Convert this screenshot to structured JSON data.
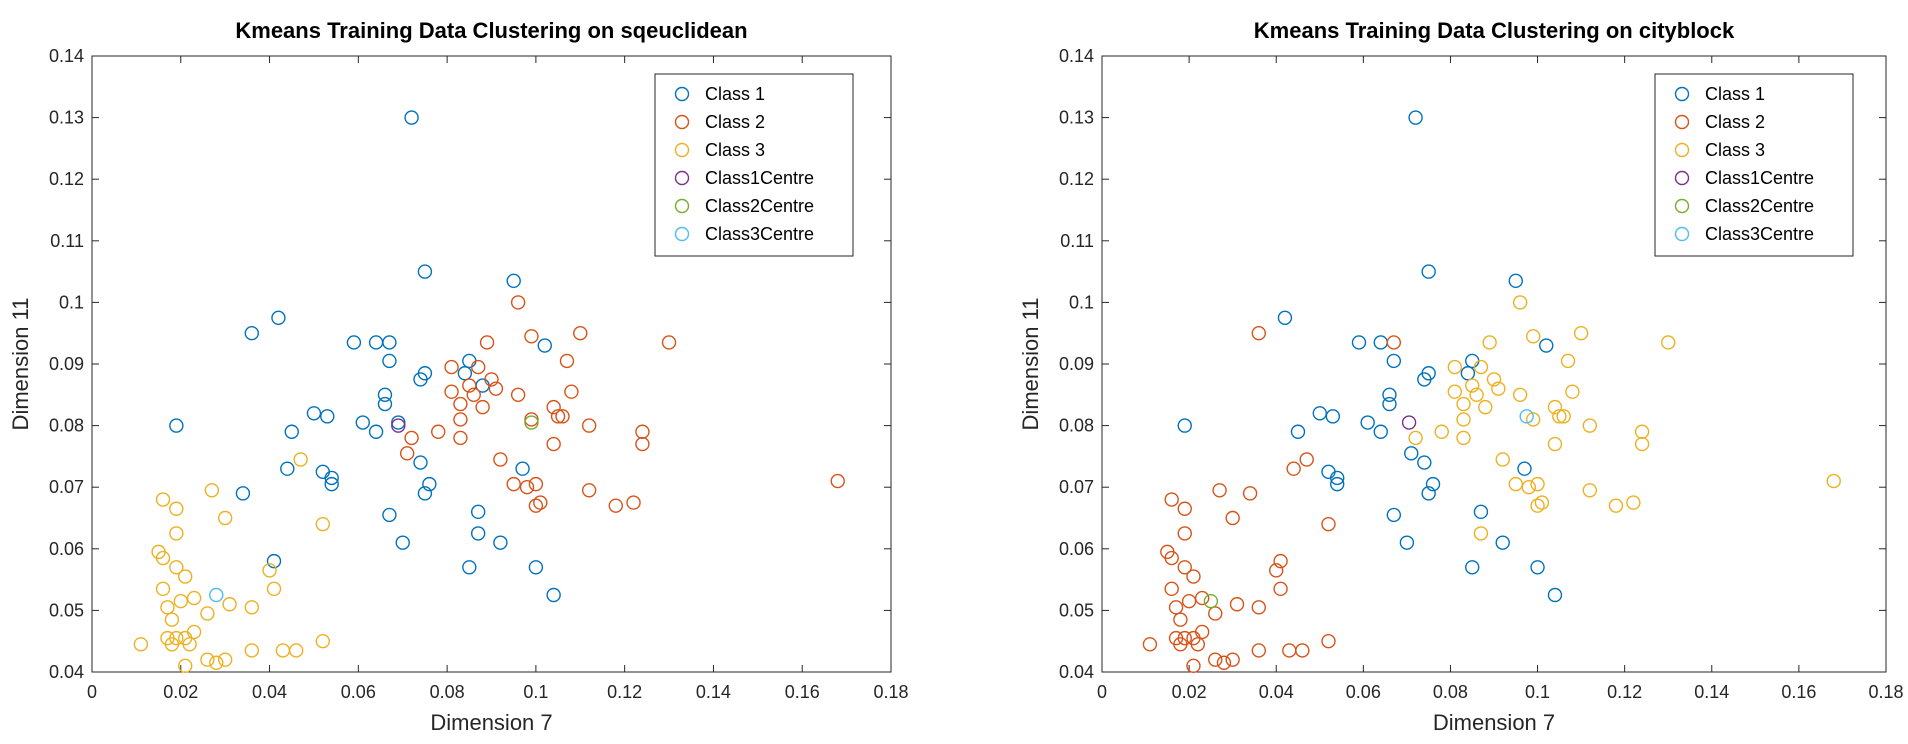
{
  "chart_data": [
    {
      "type": "scatter",
      "title": "Kmeans Training Data Clustering on sqeuclidean",
      "xlabel": "Dimension 7",
      "ylabel": "Dimension 11",
      "xlim": [
        0,
        0.18
      ],
      "ylim": [
        0.04,
        0.14
      ],
      "xticks": [
        "0",
        "0.02",
        "0.04",
        "0.06",
        "0.08",
        "0.1",
        "0.12",
        "0.14",
        "0.16",
        "0.18"
      ],
      "yticks": [
        "0.04",
        "0.05",
        "0.06",
        "0.07",
        "0.08",
        "0.09",
        "0.1",
        "0.11",
        "0.12",
        "0.13",
        "0.14"
      ],
      "grid": false,
      "legend_position": "top-right",
      "series": [
        {
          "name": "Class 1",
          "color": "#0072BD",
          "points": [
            [
              0.072,
              0.13
            ],
            [
              0.075,
              0.105
            ],
            [
              0.095,
              0.1035
            ],
            [
              0.036,
              0.095
            ],
            [
              0.042,
              0.0975
            ],
            [
              0.059,
              0.0935
            ],
            [
              0.064,
              0.0935
            ],
            [
              0.067,
              0.0935
            ],
            [
              0.067,
              0.0905
            ],
            [
              0.075,
              0.0885
            ],
            [
              0.074,
              0.0875
            ],
            [
              0.085,
              0.0905
            ],
            [
              0.084,
              0.0885
            ],
            [
              0.102,
              0.093
            ],
            [
              0.088,
              0.0865
            ],
            [
              0.066,
              0.085
            ],
            [
              0.066,
              0.0835
            ],
            [
              0.05,
              0.082
            ],
            [
              0.053,
              0.0815
            ],
            [
              0.061,
              0.0805
            ],
            [
              0.064,
              0.079
            ],
            [
              0.045,
              0.079
            ],
            [
              0.069,
              0.0805
            ],
            [
              0.019,
              0.08
            ],
            [
              0.052,
              0.0725
            ],
            [
              0.054,
              0.0715
            ],
            [
              0.054,
              0.0705
            ],
            [
              0.044,
              0.073
            ],
            [
              0.074,
              0.074
            ],
            [
              0.076,
              0.0705
            ],
            [
              0.075,
              0.069
            ],
            [
              0.097,
              0.073
            ],
            [
              0.034,
              0.069
            ],
            [
              0.067,
              0.0655
            ],
            [
              0.087,
              0.066
            ],
            [
              0.087,
              0.0625
            ],
            [
              0.07,
              0.061
            ],
            [
              0.092,
              0.061
            ],
            [
              0.041,
              0.058
            ],
            [
              0.085,
              0.057
            ],
            [
              0.1,
              0.057
            ],
            [
              0.104,
              0.0525
            ]
          ]
        },
        {
          "name": "Class 2",
          "color": "#D95319",
          "points": [
            [
              0.096,
              0.1
            ],
            [
              0.099,
              0.0945
            ],
            [
              0.11,
              0.095
            ],
            [
              0.13,
              0.0935
            ],
            [
              0.089,
              0.0935
            ],
            [
              0.081,
              0.0895
            ],
            [
              0.087,
              0.0895
            ],
            [
              0.09,
              0.0875
            ],
            [
              0.085,
              0.0865
            ],
            [
              0.091,
              0.086
            ],
            [
              0.107,
              0.0905
            ],
            [
              0.081,
              0.0855
            ],
            [
              0.086,
              0.085
            ],
            [
              0.096,
              0.085
            ],
            [
              0.108,
              0.0855
            ],
            [
              0.083,
              0.0835
            ],
            [
              0.088,
              0.083
            ],
            [
              0.099,
              0.081
            ],
            [
              0.104,
              0.083
            ],
            [
              0.105,
              0.0815
            ],
            [
              0.106,
              0.0815
            ],
            [
              0.083,
              0.081
            ],
            [
              0.078,
              0.079
            ],
            [
              0.072,
              0.078
            ],
            [
              0.083,
              0.078
            ],
            [
              0.112,
              0.08
            ],
            [
              0.124,
              0.079
            ],
            [
              0.124,
              0.077
            ],
            [
              0.104,
              0.077
            ],
            [
              0.071,
              0.0755
            ],
            [
              0.092,
              0.0745
            ],
            [
              0.095,
              0.0705
            ],
            [
              0.098,
              0.07
            ],
            [
              0.1,
              0.0705
            ],
            [
              0.101,
              0.0675
            ],
            [
              0.1,
              0.067
            ],
            [
              0.112,
              0.0695
            ],
            [
              0.118,
              0.067
            ],
            [
              0.122,
              0.0675
            ],
            [
              0.168,
              0.071
            ]
          ]
        },
        {
          "name": "Class 3",
          "color": "#EDB120",
          "points": [
            [
              0.047,
              0.0745
            ],
            [
              0.027,
              0.0695
            ],
            [
              0.016,
              0.068
            ],
            [
              0.019,
              0.0665
            ],
            [
              0.03,
              0.065
            ],
            [
              0.052,
              0.064
            ],
            [
              0.019,
              0.0625
            ],
            [
              0.015,
              0.0595
            ],
            [
              0.016,
              0.0585
            ],
            [
              0.019,
              0.057
            ],
            [
              0.021,
              0.0555
            ],
            [
              0.04,
              0.0565
            ],
            [
              0.016,
              0.0535
            ],
            [
              0.041,
              0.0535
            ],
            [
              0.02,
              0.0515
            ],
            [
              0.017,
              0.0505
            ],
            [
              0.023,
              0.052
            ],
            [
              0.031,
              0.051
            ],
            [
              0.036,
              0.0505
            ],
            [
              0.018,
              0.0485
            ],
            [
              0.026,
              0.0495
            ],
            [
              0.023,
              0.0465
            ],
            [
              0.021,
              0.0455
            ],
            [
              0.019,
              0.0455
            ],
            [
              0.017,
              0.0455
            ],
            [
              0.022,
              0.0445
            ],
            [
              0.026,
              0.042
            ],
            [
              0.03,
              0.042
            ],
            [
              0.028,
              0.0415
            ],
            [
              0.036,
              0.0435
            ],
            [
              0.043,
              0.0435
            ],
            [
              0.046,
              0.0435
            ],
            [
              0.052,
              0.045
            ],
            [
              0.021,
              0.041
            ],
            [
              0.011,
              0.0445
            ],
            [
              0.018,
              0.0445
            ]
          ]
        },
        {
          "name": "Class1Centre",
          "color": "#7E2F8E",
          "points": [
            [
              0.069,
              0.08
            ]
          ]
        },
        {
          "name": "Class2Centre",
          "color": "#77AC30",
          "points": [
            [
              0.099,
              0.0805
            ]
          ]
        },
        {
          "name": "Class3Centre",
          "color": "#4DBEEE",
          "points": [
            [
              0.028,
              0.0525
            ]
          ]
        }
      ]
    },
    {
      "type": "scatter",
      "title": "Kmeans Training Data Clustering on cityblock",
      "xlabel": "Dimension 7",
      "ylabel": "Dimension 11",
      "xlim": [
        0,
        0.18
      ],
      "ylim": [
        0.04,
        0.14
      ],
      "xticks": [
        "0",
        "0.02",
        "0.04",
        "0.06",
        "0.08",
        "0.1",
        "0.12",
        "0.14",
        "0.16",
        "0.18"
      ],
      "yticks": [
        "0.04",
        "0.05",
        "0.06",
        "0.07",
        "0.08",
        "0.09",
        "0.1",
        "0.11",
        "0.12",
        "0.13",
        "0.14"
      ],
      "grid": false,
      "legend_position": "top-right",
      "series": [
        {
          "name": "Class 1",
          "color": "#0072BD",
          "points": [
            [
              0.072,
              0.13
            ],
            [
              0.075,
              0.105
            ],
            [
              0.095,
              0.1035
            ],
            [
              0.042,
              0.0975
            ],
            [
              0.059,
              0.0935
            ],
            [
              0.064,
              0.0935
            ],
            [
              0.067,
              0.0905
            ],
            [
              0.075,
              0.0885
            ],
            [
              0.074,
              0.0875
            ],
            [
              0.085,
              0.0905
            ],
            [
              0.084,
              0.0885
            ],
            [
              0.102,
              0.093
            ],
            [
              0.066,
              0.085
            ],
            [
              0.066,
              0.0835
            ],
            [
              0.05,
              0.082
            ],
            [
              0.053,
              0.0815
            ],
            [
              0.061,
              0.0805
            ],
            [
              0.064,
              0.079
            ],
            [
              0.045,
              0.079
            ],
            [
              0.019,
              0.08
            ],
            [
              0.052,
              0.0725
            ],
            [
              0.054,
              0.0715
            ],
            [
              0.054,
              0.0705
            ],
            [
              0.071,
              0.0755
            ],
            [
              0.074,
              0.074
            ],
            [
              0.076,
              0.0705
            ],
            [
              0.075,
              0.069
            ],
            [
              0.097,
              0.073
            ],
            [
              0.067,
              0.0655
            ],
            [
              0.087,
              0.066
            ],
            [
              0.07,
              0.061
            ],
            [
              0.092,
              0.061
            ],
            [
              0.085,
              0.057
            ],
            [
              0.1,
              0.057
            ],
            [
              0.104,
              0.0525
            ]
          ]
        },
        {
          "name": "Class 2",
          "color": "#D95319",
          "points": [
            [
              0.036,
              0.095
            ],
            [
              0.067,
              0.0935
            ],
            [
              0.044,
              0.073
            ],
            [
              0.047,
              0.0745
            ],
            [
              0.027,
              0.0695
            ],
            [
              0.034,
              0.069
            ],
            [
              0.016,
              0.068
            ],
            [
              0.019,
              0.0665
            ],
            [
              0.03,
              0.065
            ],
            [
              0.052,
              0.064
            ],
            [
              0.019,
              0.0625
            ],
            [
              0.015,
              0.0595
            ],
            [
              0.016,
              0.0585
            ],
            [
              0.019,
              0.057
            ],
            [
              0.021,
              0.0555
            ],
            [
              0.04,
              0.0565
            ],
            [
              0.041,
              0.058
            ],
            [
              0.016,
              0.0535
            ],
            [
              0.041,
              0.0535
            ],
            [
              0.02,
              0.0515
            ],
            [
              0.017,
              0.0505
            ],
            [
              0.023,
              0.052
            ],
            [
              0.031,
              0.051
            ],
            [
              0.036,
              0.0505
            ],
            [
              0.018,
              0.0485
            ],
            [
              0.026,
              0.0495
            ],
            [
              0.023,
              0.0465
            ],
            [
              0.021,
              0.0455
            ],
            [
              0.019,
              0.0455
            ],
            [
              0.017,
              0.0455
            ],
            [
              0.022,
              0.0445
            ],
            [
              0.026,
              0.042
            ],
            [
              0.03,
              0.042
            ],
            [
              0.028,
              0.0415
            ],
            [
              0.036,
              0.0435
            ],
            [
              0.043,
              0.0435
            ],
            [
              0.046,
              0.0435
            ],
            [
              0.052,
              0.045
            ],
            [
              0.021,
              0.041
            ],
            [
              0.011,
              0.0445
            ],
            [
              0.018,
              0.0445
            ]
          ]
        },
        {
          "name": "Class 3",
          "color": "#EDB120",
          "points": [
            [
              0.096,
              0.1
            ],
            [
              0.099,
              0.0945
            ],
            [
              0.11,
              0.095
            ],
            [
              0.13,
              0.0935
            ],
            [
              0.089,
              0.0935
            ],
            [
              0.081,
              0.0895
            ],
            [
              0.087,
              0.0895
            ],
            [
              0.09,
              0.0875
            ],
            [
              0.085,
              0.0865
            ],
            [
              0.091,
              0.086
            ],
            [
              0.107,
              0.0905
            ],
            [
              0.081,
              0.0855
            ],
            [
              0.086,
              0.085
            ],
            [
              0.096,
              0.085
            ],
            [
              0.108,
              0.0855
            ],
            [
              0.083,
              0.0835
            ],
            [
              0.088,
              0.083
            ],
            [
              0.099,
              0.081
            ],
            [
              0.104,
              0.083
            ],
            [
              0.105,
              0.0815
            ],
            [
              0.106,
              0.0815
            ],
            [
              0.083,
              0.081
            ],
            [
              0.078,
              0.079
            ],
            [
              0.072,
              0.078
            ],
            [
              0.083,
              0.078
            ],
            [
              0.112,
              0.08
            ],
            [
              0.124,
              0.079
            ],
            [
              0.124,
              0.077
            ],
            [
              0.104,
              0.077
            ],
            [
              0.092,
              0.0745
            ],
            [
              0.095,
              0.0705
            ],
            [
              0.098,
              0.07
            ],
            [
              0.1,
              0.0705
            ],
            [
              0.101,
              0.0675
            ],
            [
              0.1,
              0.067
            ],
            [
              0.112,
              0.0695
            ],
            [
              0.118,
              0.067
            ],
            [
              0.122,
              0.0675
            ],
            [
              0.087,
              0.0625
            ],
            [
              0.168,
              0.071
            ]
          ]
        },
        {
          "name": "Class1Centre",
          "color": "#7E2F8E",
          "points": [
            [
              0.0705,
              0.0805
            ]
          ]
        },
        {
          "name": "Class2Centre",
          "color": "#77AC30",
          "points": [
            [
              0.025,
              0.0515
            ]
          ]
        },
        {
          "name": "Class3Centre",
          "color": "#4DBEEE",
          "points": [
            [
              0.0975,
              0.0815
            ]
          ]
        }
      ]
    }
  ]
}
